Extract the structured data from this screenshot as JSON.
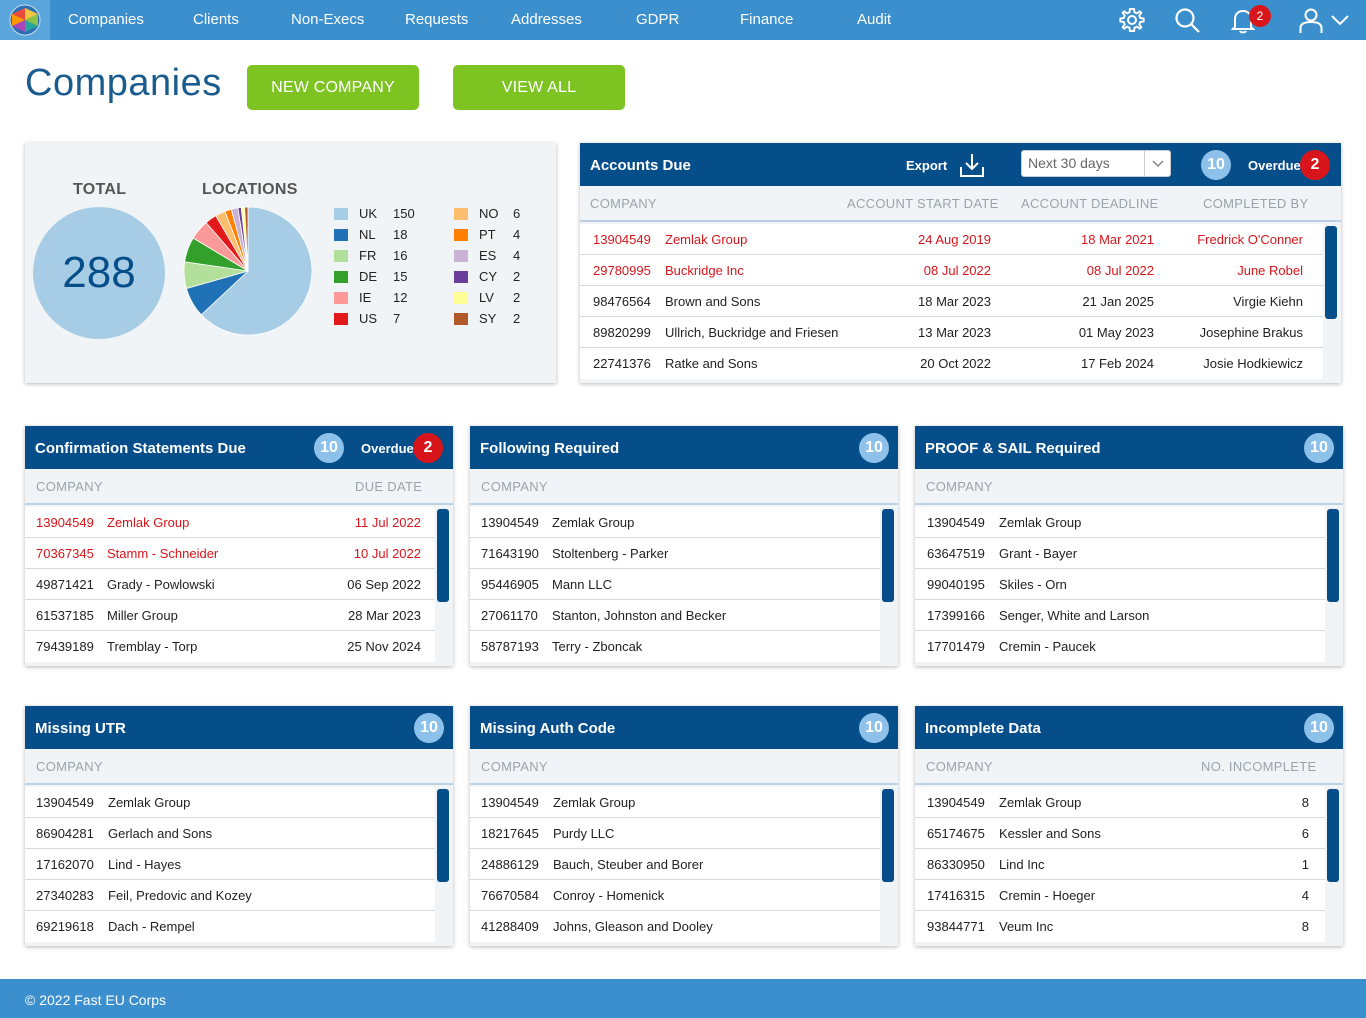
{
  "nav": {
    "items": [
      "Companies",
      "Clients",
      "Non-Execs",
      "Requests",
      "Addresses",
      "GDPR",
      "Finance",
      "Audit"
    ],
    "notification_count": "2"
  },
  "page": {
    "title": "Companies",
    "new_company_label": "NEW COMPANY",
    "view_all_label": "VIEW ALL"
  },
  "summary": {
    "total_label": "TOTAL",
    "total_value": "288",
    "locations_label": "LOCATIONS",
    "locations": [
      {
        "code": "UK",
        "count": "150",
        "color": "#a6cde5"
      },
      {
        "code": "NL",
        "count": "18",
        "color": "#1f72b5"
      },
      {
        "code": "FR",
        "count": "16",
        "color": "#b2e09a"
      },
      {
        "code": "DE",
        "count": "15",
        "color": "#33a02c"
      },
      {
        "code": "IE",
        "count": "12",
        "color": "#fb9a99"
      },
      {
        "code": "US",
        "count": "7",
        "color": "#e31a1c"
      },
      {
        "code": "NO",
        "count": "6",
        "color": "#fdbf6f"
      },
      {
        "code": "PT",
        "count": "4",
        "color": "#ff7f00"
      },
      {
        "code": "ES",
        "count": "4",
        "color": "#cab2d6"
      },
      {
        "code": "CY",
        "count": "2",
        "color": "#6a3d9a"
      },
      {
        "code": "LV",
        "count": "2",
        "color": "#ffff99"
      },
      {
        "code": "SY",
        "count": "2",
        "color": "#b15928"
      }
    ]
  },
  "chart_data": {
    "type": "pie",
    "title": "LOCATIONS",
    "categories": [
      "UK",
      "NL",
      "FR",
      "DE",
      "IE",
      "US",
      "NO",
      "PT",
      "ES",
      "CY",
      "LV",
      "SY"
    ],
    "values": [
      150,
      18,
      16,
      15,
      12,
      7,
      6,
      4,
      4,
      2,
      2,
      2
    ],
    "colors": [
      "#a6cde5",
      "#1f72b5",
      "#b2e09a",
      "#33a02c",
      "#fb9a99",
      "#e31a1c",
      "#fdbf6f",
      "#ff7f00",
      "#cab2d6",
      "#6a3d9a",
      "#ffff99",
      "#b15928"
    ],
    "legend": "right"
  },
  "accounts_due": {
    "title": "Accounts Due",
    "export_label": "Export",
    "range_value": "Next 30 days",
    "count": "10",
    "overdue_label": "Overdue",
    "overdue_count": "2",
    "columns": [
      "COMPANY",
      "ACCOUNT START DATE",
      "ACCOUNT DEADLINE",
      "COMPLETED BY"
    ],
    "rows": [
      {
        "number": "13904549",
        "name": "Zemlak Group",
        "start": "24 Aug 2019",
        "deadline": "18 Mar 2021",
        "by": "Fredrick O'Conner",
        "overdue": true
      },
      {
        "number": "29780995",
        "name": "Buckridge Inc",
        "start": "08 Jul 2022",
        "deadline": "08 Jul 2022",
        "by": "June Robel",
        "overdue": true
      },
      {
        "number": "98476564",
        "name": "Brown and Sons",
        "start": "18 Mar 2023",
        "deadline": "21 Jan 2025",
        "by": "Virgie Kiehn",
        "overdue": false
      },
      {
        "number": "89820299",
        "name": "Ullrich, Buckridge and Friesen",
        "start": "13 Mar 2023",
        "deadline": "01 May 2023",
        "by": "Josephine Brakus",
        "overdue": false
      },
      {
        "number": "22741376",
        "name": "Ratke and Sons",
        "start": "20 Oct 2022",
        "deadline": "17 Feb 2024",
        "by": "Josie Hodkiewicz",
        "overdue": false
      }
    ]
  },
  "confirmation": {
    "title": "Confirmation Statements Due",
    "count": "10",
    "overdue_label": "Overdue",
    "overdue_count": "2",
    "columns": [
      "COMPANY",
      "DUE DATE"
    ],
    "rows": [
      {
        "number": "13904549",
        "name": "Zemlak Group",
        "date": "11 Jul 2022",
        "overdue": true
      },
      {
        "number": "70367345",
        "name": "Stamm - Schneider",
        "date": "10 Jul 2022",
        "overdue": true
      },
      {
        "number": "49871421",
        "name": "Grady - Powlowski",
        "date": "06 Sep 2022",
        "overdue": false
      },
      {
        "number": "61537185",
        "name": "Miller Group",
        "date": "28 Mar 2023",
        "overdue": false
      },
      {
        "number": "79439189",
        "name": "Tremblay - Torp",
        "date": "25 Nov 2024",
        "overdue": false
      }
    ]
  },
  "following": {
    "title": "Following Required",
    "count": "10",
    "columns": [
      "COMPANY"
    ],
    "rows": [
      {
        "number": "13904549",
        "name": "Zemlak Group"
      },
      {
        "number": "71643190",
        "name": "Stoltenberg - Parker"
      },
      {
        "number": "95446905",
        "name": "Mann LLC"
      },
      {
        "number": "27061170",
        "name": "Stanton, Johnston and Becker"
      },
      {
        "number": "58787193",
        "name": "Terry - Zboncak"
      }
    ]
  },
  "proof_sail": {
    "title": "PROOF & SAIL Required",
    "count": "10",
    "columns": [
      "COMPANY"
    ],
    "rows": [
      {
        "number": "13904549",
        "name": "Zemlak Group"
      },
      {
        "number": "63647519",
        "name": "Grant - Bayer"
      },
      {
        "number": "99040195",
        "name": "Skiles - Orn"
      },
      {
        "number": "17399166",
        "name": "Senger, White and Larson"
      },
      {
        "number": "17701479",
        "name": "Cremin - Paucek"
      }
    ]
  },
  "missing_utr": {
    "title": "Missing UTR",
    "count": "10",
    "columns": [
      "COMPANY"
    ],
    "rows": [
      {
        "number": "13904549",
        "name": "Zemlak Group"
      },
      {
        "number": "86904281",
        "name": "Gerlach and Sons"
      },
      {
        "number": "17162070",
        "name": "Lind - Hayes"
      },
      {
        "number": "27340283",
        "name": "Feil, Predovic and Kozey"
      },
      {
        "number": "69219618",
        "name": "Dach - Rempel"
      }
    ]
  },
  "missing_auth": {
    "title": "Missing Auth Code",
    "count": "10",
    "columns": [
      "COMPANY"
    ],
    "rows": [
      {
        "number": "13904549",
        "name": "Zemlak Group"
      },
      {
        "number": "18217645",
        "name": "Purdy LLC"
      },
      {
        "number": "24886129",
        "name": "Bauch, Steuber and Borer"
      },
      {
        "number": "76670584",
        "name": "Conroy - Homenick"
      },
      {
        "number": "41288409",
        "name": "Johns, Gleason and Dooley"
      }
    ]
  },
  "incomplete": {
    "title": "Incomplete Data",
    "count": "10",
    "columns": [
      "COMPANY",
      "NO. INCOMPLETE"
    ],
    "rows": [
      {
        "number": "13904549",
        "name": "Zemlak Group",
        "value": "8"
      },
      {
        "number": "65174675",
        "name": "Kessler and Sons",
        "value": "6"
      },
      {
        "number": "86330950",
        "name": "Lind Inc",
        "value": "1"
      },
      {
        "number": "17416315",
        "name": "Cremin - Hoeger",
        "value": "4"
      },
      {
        "number": "93844771",
        "name": "Veum Inc",
        "value": "8"
      }
    ]
  },
  "footer": {
    "copyright": "© 2022 Fast EU Corps"
  }
}
